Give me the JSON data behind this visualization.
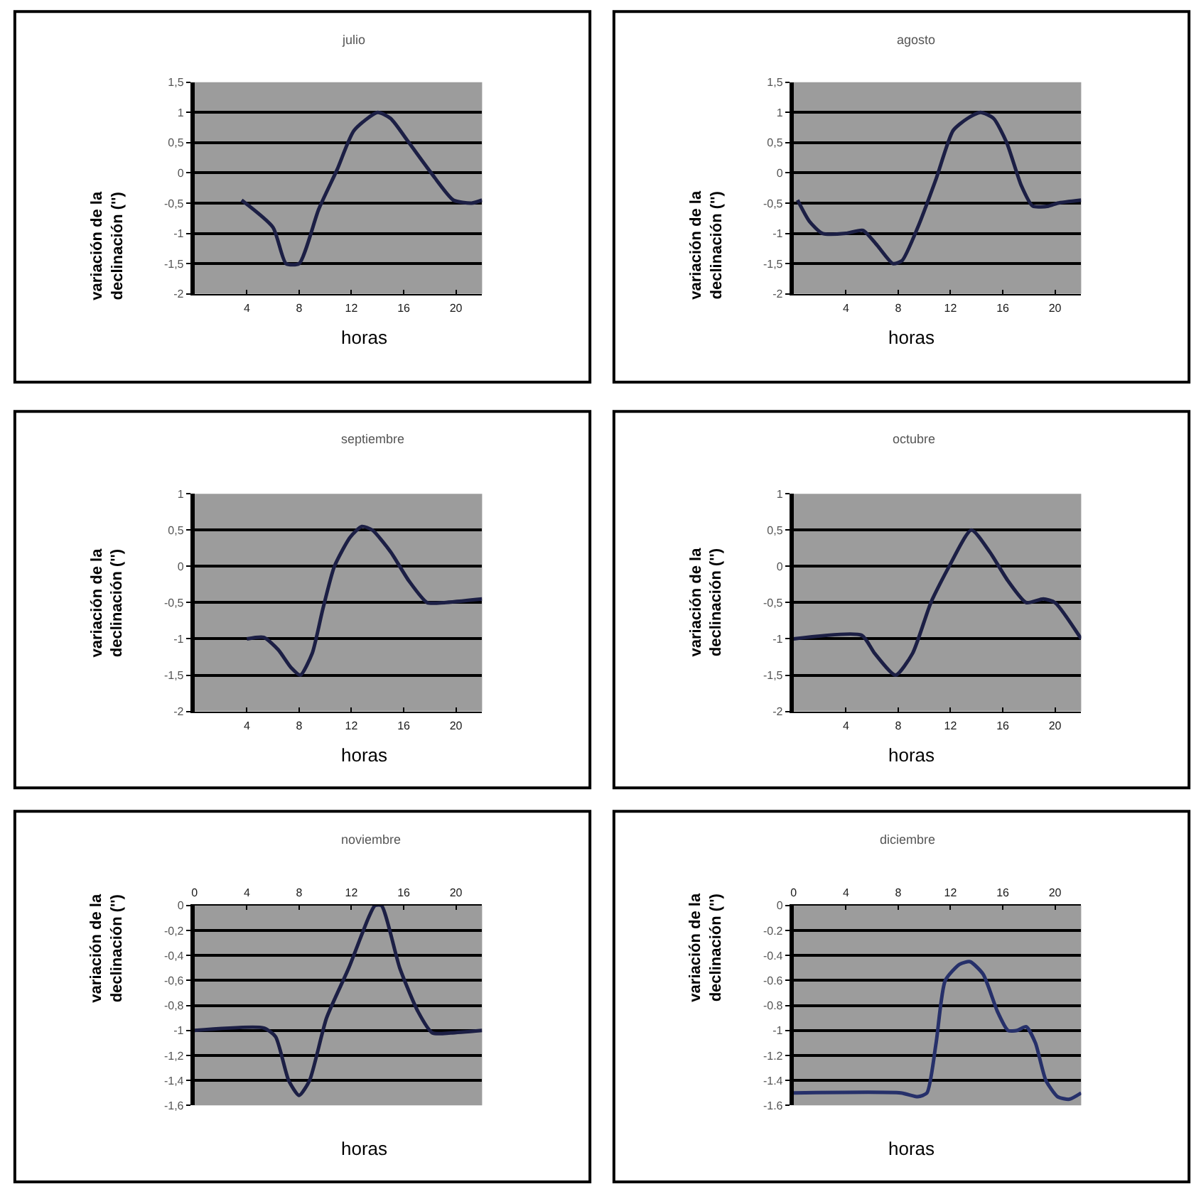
{
  "chart_data": [
    {
      "type": "line",
      "title": "julio",
      "xlabel": "horas",
      "ylabel": "variación de la declinación ('')",
      "xlim": [
        0,
        22
      ],
      "xticks": [
        4,
        8,
        12,
        16,
        20
      ],
      "ylim": [
        -2,
        1.5
      ],
      "yticks": [
        {
          "value": 1.5,
          "label": "1,5"
        },
        1,
        {
          "value": 0.5,
          "label": "0,5"
        },
        0,
        {
          "value": -0.5,
          "label": "-0,5"
        },
        -1,
        {
          "value": -1.5,
          "label": "-1,5"
        },
        -2
      ],
      "grid": "y",
      "marker": "none",
      "line_style": "solid",
      "series": [
        {
          "color": "#1c1f45",
          "x": [
            3.6,
            6,
            7,
            8,
            9.5,
            10.9,
            12.2,
            14,
            15,
            16.4,
            18.1,
            19.8,
            21.2,
            22
          ],
          "values": [
            -0.45,
            -0.9,
            -1.5,
            -1.5,
            -0.6,
            0.05,
            0.7,
            1.0,
            0.9,
            0.5,
            0.0,
            -0.45,
            -0.5,
            -0.45
          ]
        }
      ]
    },
    {
      "type": "line",
      "title": "agosto",
      "xlabel": "horas",
      "ylabel": "variación de la declinación ('')",
      "xlim": [
        0,
        22
      ],
      "xticks": [
        4,
        8,
        12,
        16,
        20
      ],
      "ylim": [
        -2,
        1.5
      ],
      "yticks": [
        {
          "value": 1.5,
          "label": "1,5"
        },
        1,
        {
          "value": 0.5,
          "label": "0,5"
        },
        0,
        {
          "value": -0.5,
          "label": "-0,5"
        },
        -1,
        {
          "value": -1.5,
          "label": "-1,5"
        },
        -2
      ],
      "grid": "y",
      "marker": "none",
      "line_style": "solid",
      "series": [
        {
          "color": "#1c1f45",
          "x": [
            0.3,
            1.2,
            2.2,
            4,
            5.3,
            6.4,
            7.6,
            8.3,
            9.5,
            10.9,
            12.2,
            13.3,
            14.3,
            15.3,
            16.3,
            17.4,
            18.3,
            19.5,
            20.2,
            22
          ],
          "values": [
            -0.45,
            -0.8,
            -1.0,
            -1.0,
            -0.95,
            -1.2,
            -1.5,
            -1.45,
            -0.9,
            -0.1,
            0.7,
            0.9,
            1.0,
            0.9,
            0.5,
            -0.2,
            -0.55,
            -0.55,
            -0.5,
            -0.45
          ]
        }
      ]
    },
    {
      "type": "line",
      "title": "septiembre",
      "xlabel": "horas",
      "ylabel": "variación de la declinación ('')",
      "xlim": [
        0,
        22
      ],
      "xticks": [
        4,
        8,
        12,
        16,
        20
      ],
      "ylim": [
        -2,
        1
      ],
      "yticks": [
        1,
        {
          "value": 0.5,
          "label": "0,5"
        },
        0,
        {
          "value": -0.5,
          "label": "-0,5"
        },
        -1,
        {
          "value": -1.5,
          "label": "-1,5"
        },
        -2
      ],
      "grid": "y",
      "marker": "none",
      "line_style": "solid",
      "series": [
        {
          "color": "#1c1f45",
          "x": [
            4,
            5.3,
            6.4,
            7.4,
            8.1,
            9,
            9.8,
            10.7,
            11.9,
            12.8,
            13.6,
            15,
            16.4,
            17.8,
            19.1,
            22
          ],
          "values": [
            -1.0,
            -0.98,
            -1.15,
            -1.4,
            -1.5,
            -1.2,
            -0.6,
            0.0,
            0.4,
            0.55,
            0.5,
            0.2,
            -0.2,
            -0.5,
            -0.5,
            -0.45
          ]
        }
      ]
    },
    {
      "type": "line",
      "title": "octubre",
      "xlabel": "horas",
      "ylabel": "variación de la declinación ('')",
      "xlim": [
        0,
        22
      ],
      "xticks": [
        4,
        8,
        12,
        16,
        20
      ],
      "ylim": [
        -2,
        1
      ],
      "yticks": [
        1,
        {
          "value": 0.5,
          "label": "0,5"
        },
        0,
        {
          "value": -0.5,
          "label": "-0,5"
        },
        -1,
        {
          "value": -1.5,
          "label": "-1,5"
        },
        -2
      ],
      "grid": "y",
      "marker": "none",
      "line_style": "solid",
      "series": [
        {
          "color": "#1c1f45",
          "x": [
            0,
            5.2,
            6.2,
            7.8,
            9.1,
            10.5,
            11.9,
            13.6,
            15,
            16.4,
            17.8,
            19.1,
            20,
            22
          ],
          "values": [
            -1.0,
            -0.95,
            -1.2,
            -1.5,
            -1.2,
            -0.5,
            0.0,
            0.5,
            0.2,
            -0.2,
            -0.5,
            -0.45,
            -0.5,
            -1.0
          ]
        }
      ]
    },
    {
      "type": "line",
      "title": "noviembre",
      "xlabel": "horas",
      "ylabel": "variación de la declinación ('')",
      "xlim": [
        0,
        22
      ],
      "xticks": [
        0,
        4,
        8,
        12,
        16,
        20
      ],
      "ylim": [
        -1.6,
        0
      ],
      "yticks": [
        0,
        {
          "value": -0.2,
          "label": "-0,2"
        },
        {
          "value": -0.4,
          "label": "-0,4"
        },
        {
          "value": -0.6,
          "label": "-0,6"
        },
        {
          "value": -0.8,
          "label": "-0,8"
        },
        -1,
        {
          "value": -1.2,
          "label": "-1,2"
        },
        {
          "value": -1.4,
          "label": "-1,4"
        },
        {
          "value": -1.6,
          "label": "-1,6"
        }
      ],
      "grid": "y",
      "marker": "none",
      "line_style": "solid",
      "series": [
        {
          "color": "#1c1f45",
          "x": [
            0,
            5.3,
            6.2,
            7.2,
            8,
            8.8,
            10.1,
            11.8,
            13.3,
            13.8,
            14.3,
            15.7,
            17.1,
            18.2,
            19.6,
            22
          ],
          "values": [
            -1.0,
            -0.98,
            -1.05,
            -1.4,
            -1.52,
            -1.4,
            -0.9,
            -0.5,
            -0.1,
            0.0,
            0.0,
            -0.5,
            -0.85,
            -1.02,
            -1.02,
            -1.0
          ]
        }
      ]
    },
    {
      "type": "line",
      "title": "diciembre",
      "xlabel": "horas",
      "ylabel": "variación de la declinación ('')",
      "xlim": [
        0,
        22
      ],
      "xticks": [
        0,
        4,
        8,
        12,
        16,
        20
      ],
      "ylim": [
        -1.6,
        0
      ],
      "yticks": [
        0,
        -0.2,
        -0.4,
        -0.6,
        -0.8,
        -1,
        -1.2,
        -1.4,
        -1.6
      ],
      "grid": "y",
      "marker": "none",
      "line_style": "solid",
      "series": [
        {
          "color": "#26306a",
          "x": [
            0,
            8.2,
            9.5,
            10.2,
            10.9,
            11.6,
            12.7,
            13.5,
            14.5,
            15.6,
            16.4,
            17.1,
            17.8,
            18.5,
            19.3,
            20.2,
            21.1,
            22
          ],
          "values": [
            -1.5,
            -1.5,
            -1.53,
            -1.5,
            -1.1,
            -0.6,
            -0.47,
            -0.45,
            -0.55,
            -0.85,
            -1.0,
            -1.0,
            -0.97,
            -1.1,
            -1.4,
            -1.53,
            -1.55,
            -1.5
          ]
        }
      ]
    }
  ]
}
